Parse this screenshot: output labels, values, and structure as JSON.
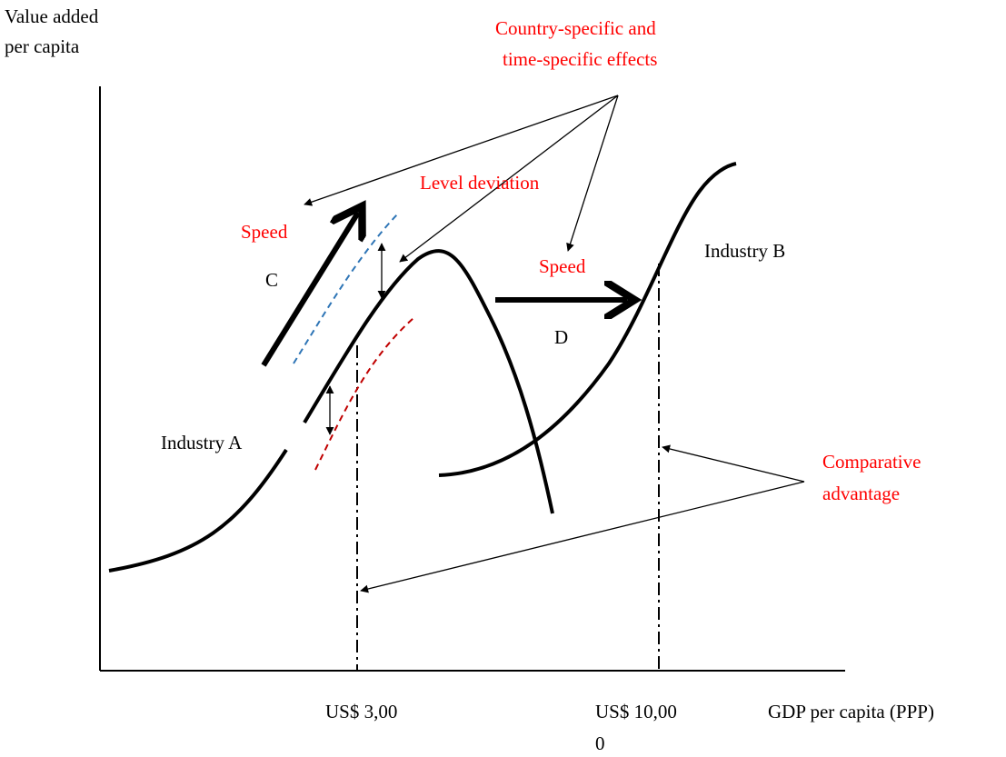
{
  "y_axis_label": [
    "Value added",
    "per capita"
  ],
  "x_axis_label": "GDP per capita (PPP)",
  "x_markers": [
    {
      "lines": [
        "US$ 3,00"
      ]
    },
    {
      "lines": [
        "US$ 10,00",
        "0"
      ]
    }
  ],
  "annotations": {
    "effects": [
      "Country-specific and",
      "time-specific effects"
    ],
    "level_deviation": "Level deviation",
    "speed_c": "Speed",
    "c": "C",
    "speed_d": "Speed",
    "d": "D",
    "industry_b": "Industry B",
    "industry_a": "Industry A",
    "comparative_advantage": [
      "Comparative",
      "advantage"
    ]
  }
}
